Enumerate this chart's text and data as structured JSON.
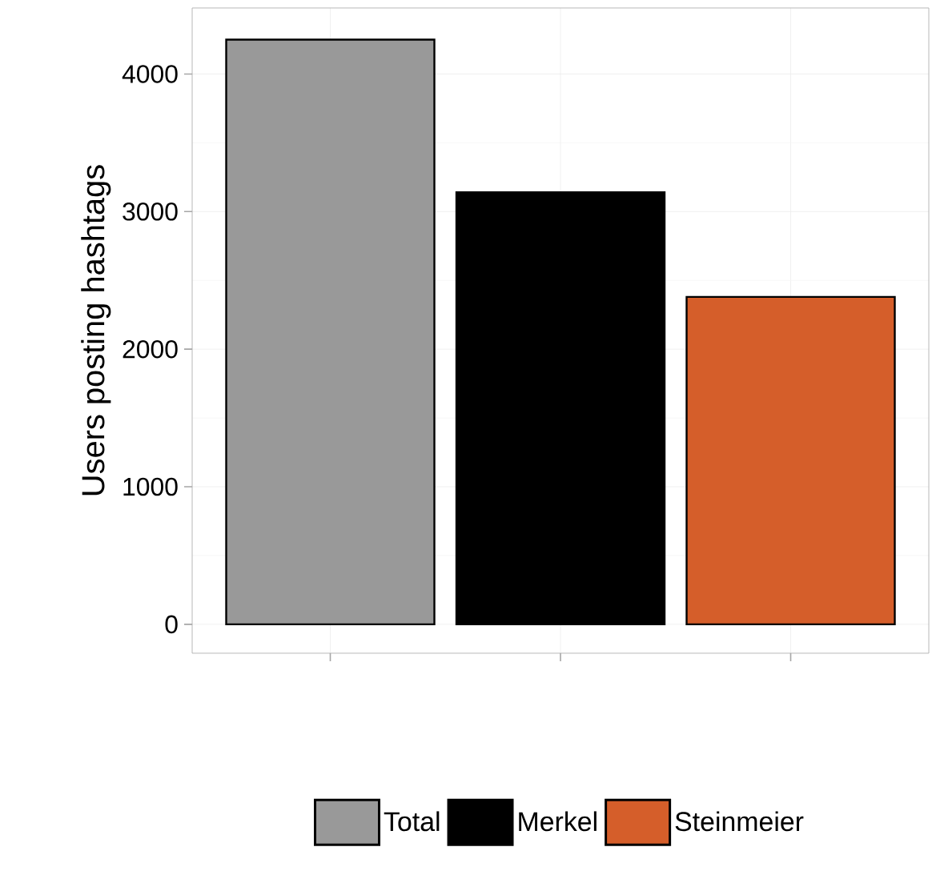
{
  "chart_data": {
    "type": "bar",
    "ylabel": "Users posting hashtags",
    "categories": [
      null,
      null,
      null
    ],
    "series": [
      {
        "name": "Total",
        "color": "#999999",
        "values": [
          4250,
          null,
          null
        ]
      },
      {
        "name": "Merkel",
        "color": "#000000",
        "values": [
          null,
          3140,
          null
        ]
      },
      {
        "name": "Steinmeier",
        "color": "#d55e2a",
        "values": [
          null,
          null,
          2380
        ]
      }
    ],
    "ylim": [
      -210,
      4480
    ],
    "yticks": [
      0,
      1000,
      2000,
      3000,
      4000
    ],
    "grid": true,
    "legend": "bottom",
    "tick_labels": "y"
  }
}
